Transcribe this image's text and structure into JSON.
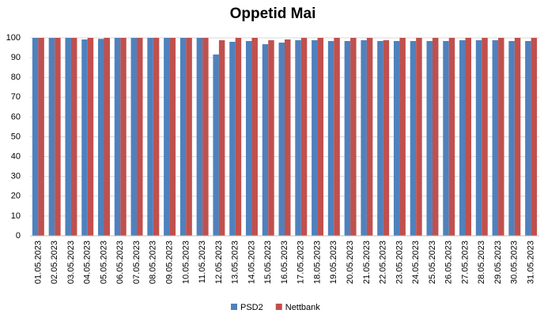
{
  "chart_data": {
    "type": "bar",
    "title": "Oppetid Mai",
    "categories": [
      "01.05.2023",
      "02.05.2023",
      "03.05.2023",
      "04.05.2023",
      "05.05.2023",
      "06.05.2023",
      "07.05.2023",
      "08.05.2023",
      "09.05.2023",
      "10.05.2023",
      "11.05.2023",
      "12.05.2023",
      "13.05.2023",
      "14.05.2023",
      "15.05.2023",
      "16.05.2023",
      "17.05.2023",
      "18.05.2023",
      "19.05.2023",
      "20.05.2023",
      "21.05.2023",
      "22.05.2023",
      "23.05.2023",
      "24.05.2023",
      "25.05.2023",
      "26.05.2023",
      "27.05.2023",
      "28.05.2023",
      "29.05.2023",
      "30.05.2023",
      "31.05.2023"
    ],
    "series": [
      {
        "name": "PSD2",
        "color": "#4f81bd",
        "values": [
          100,
          100,
          100,
          99.2,
          99.5,
          100,
          100,
          100,
          100,
          100,
          100,
          91.6,
          98,
          98.4,
          96.8,
          97.6,
          98.8,
          98.8,
          98.4,
          98.4,
          98.8,
          98.4,
          98.4,
          98.4,
          98.4,
          98.4,
          98.8,
          98.8,
          98.8,
          98.4,
          98.4
        ]
      },
      {
        "name": "Nettbank",
        "color": "#c0504d",
        "values": [
          100,
          100,
          100,
          100,
          100,
          100,
          100,
          100,
          100,
          100,
          100,
          98.8,
          100,
          100,
          98.8,
          99.2,
          100,
          100,
          100,
          100,
          100,
          98.8,
          100,
          100,
          100,
          100,
          100,
          100,
          100,
          100,
          100
        ]
      }
    ],
    "ylim": [
      0,
      100
    ],
    "yticks": [
      0,
      10,
      20,
      30,
      40,
      50,
      60,
      70,
      80,
      90,
      100
    ],
    "grid": true,
    "legend": "bottom"
  }
}
